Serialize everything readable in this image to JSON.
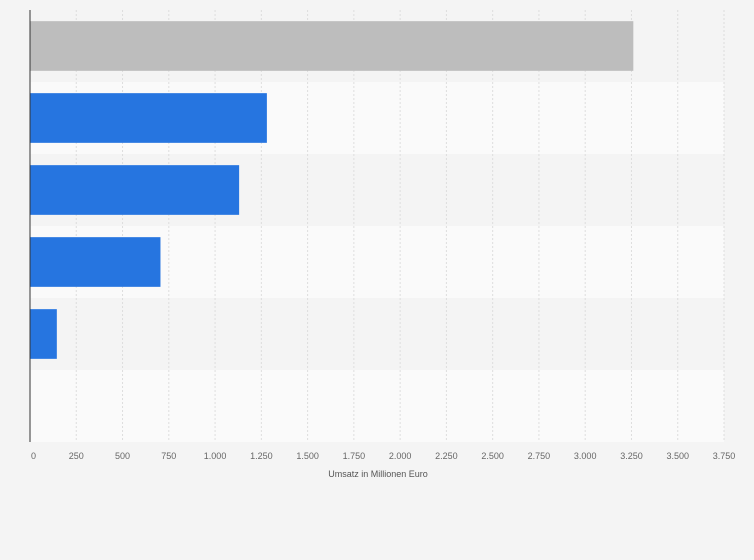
{
  "chart_data": {
    "type": "bar",
    "orientation": "horizontal",
    "categories": [
      "",
      "",
      "",
      "",
      "",
      ""
    ],
    "values": [
      3260,
      1280,
      1130,
      705,
      145,
      null
    ],
    "bar_colors": [
      "#bdbdbd",
      "#2675e0",
      "#2675e0",
      "#2675e0",
      "#2675e0",
      "#2675e0"
    ],
    "band_colors": [
      "#f4f4f4",
      "#fafafa"
    ],
    "title": "",
    "xlabel": "Umsatz in Millionen Euro",
    "ylabel": "",
    "xlim": [
      0,
      3750
    ],
    "xticks": [
      0,
      250,
      500,
      750,
      1000,
      1250,
      1500,
      1750,
      2000,
      2250,
      2500,
      2750,
      3000,
      3250,
      3500,
      3750
    ],
    "xtick_labels": [
      "0",
      "250",
      "500",
      "750",
      "1.000",
      "1.250",
      "1.500",
      "1.750",
      "2.000",
      "2.250",
      "2.500",
      "2.750",
      "3.000",
      "3.250",
      "3.500",
      "3.750"
    ],
    "grid": true,
    "legend": "none"
  }
}
